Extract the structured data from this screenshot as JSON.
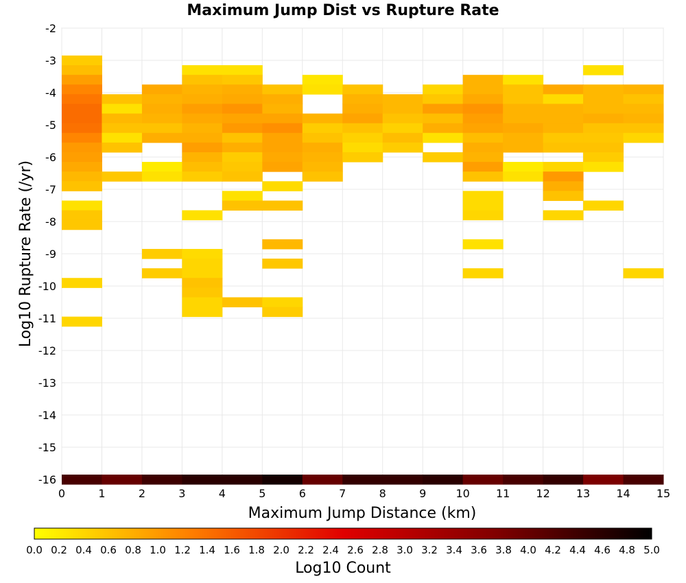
{
  "chart_data": {
    "type": "heatmap",
    "title": "Maximum Jump Dist vs Rupture Rate",
    "xlabel": "Maximum Jump Distance (km)",
    "ylabel": "Log10 Rupture Rate (/yr)",
    "xlim": [
      0,
      15
    ],
    "ylim": [
      -16,
      -2
    ],
    "x_ticks": [
      "0",
      "1",
      "2",
      "3",
      "4",
      "5",
      "6",
      "7",
      "8",
      "9",
      "10",
      "11",
      "12",
      "13",
      "14",
      "15"
    ],
    "y_ticks": [
      "-2",
      "-3",
      "-4",
      "-5",
      "-6",
      "-7",
      "-8",
      "-9",
      "-10",
      "-11",
      "-12",
      "-13",
      "-14",
      "-15",
      "-16"
    ],
    "grid": true,
    "bin_width_x": 1,
    "bin_height_y": 0.3,
    "colorbar": {
      "label": "Log10 Count",
      "min": 0.0,
      "max": 5.0,
      "ticks": [
        "0.0",
        "0.2",
        "0.4",
        "0.6",
        "0.8",
        "1.0",
        "1.2",
        "1.4",
        "1.6",
        "1.8",
        "2.0",
        "2.2",
        "2.4",
        "2.6",
        "2.8",
        "3.0",
        "3.2",
        "3.4",
        "3.6",
        "3.8",
        "4.0",
        "4.2",
        "4.4",
        "4.6",
        "4.8",
        "5.0"
      ],
      "colors": [
        "#ffff00",
        "#ff8000",
        "#e00000",
        "#800000",
        "#000000"
      ]
    },
    "cells": [
      {
        "x": 0,
        "y": -3.0,
        "v": 0.5
      },
      {
        "x": 0,
        "y": -3.3,
        "v": 0.65
      },
      {
        "x": 0,
        "y": -3.6,
        "v": 0.95
      },
      {
        "x": 0,
        "y": -3.9,
        "v": 1.2
      },
      {
        "x": 0,
        "y": -4.2,
        "v": 1.35
      },
      {
        "x": 0,
        "y": -4.5,
        "v": 1.45
      },
      {
        "x": 0,
        "y": -4.8,
        "v": 1.45
      },
      {
        "x": 0,
        "y": -5.1,
        "v": 1.4
      },
      {
        "x": 0,
        "y": -5.4,
        "v": 1.2
      },
      {
        "x": 0,
        "y": -5.7,
        "v": 1.0
      },
      {
        "x": 0,
        "y": -6.0,
        "v": 0.95
      },
      {
        "x": 0,
        "y": -6.3,
        "v": 0.85
      },
      {
        "x": 0,
        "y": -6.6,
        "v": 0.7
      },
      {
        "x": 0,
        "y": -6.9,
        "v": 0.6
      },
      {
        "x": 0,
        "y": -7.5,
        "v": 0.3
      },
      {
        "x": 0,
        "y": -7.8,
        "v": 0.55
      },
      {
        "x": 0,
        "y": -8.1,
        "v": 0.55
      },
      {
        "x": 0,
        "y": -9.9,
        "v": 0.4
      },
      {
        "x": 0,
        "y": -11.1,
        "v": 0.4
      },
      {
        "x": 1,
        "y": -4.2,
        "v": 0.6
      },
      {
        "x": 1,
        "y": -4.5,
        "v": 0.3
      },
      {
        "x": 1,
        "y": -4.8,
        "v": 0.7
      },
      {
        "x": 1,
        "y": -5.1,
        "v": 0.6
      },
      {
        "x": 1,
        "y": -5.4,
        "v": 0.3
      },
      {
        "x": 1,
        "y": -5.7,
        "v": 0.6
      },
      {
        "x": 1,
        "y": -6.6,
        "v": 0.55
      },
      {
        "x": 2,
        "y": -3.9,
        "v": 0.85
      },
      {
        "x": 2,
        "y": -4.2,
        "v": 0.75
      },
      {
        "x": 2,
        "y": -4.5,
        "v": 0.8
      },
      {
        "x": 2,
        "y": -4.8,
        "v": 0.75
      },
      {
        "x": 2,
        "y": -5.1,
        "v": 0.6
      },
      {
        "x": 2,
        "y": -5.4,
        "v": 0.8
      },
      {
        "x": 2,
        "y": -6.3,
        "v": 0.2
      },
      {
        "x": 2,
        "y": -6.6,
        "v": 0.3
      },
      {
        "x": 2,
        "y": -9.0,
        "v": 0.5
      },
      {
        "x": 2,
        "y": -9.6,
        "v": 0.5
      },
      {
        "x": 3,
        "y": -3.3,
        "v": 0.3
      },
      {
        "x": 3,
        "y": -3.6,
        "v": 0.6
      },
      {
        "x": 3,
        "y": -3.9,
        "v": 0.75
      },
      {
        "x": 3,
        "y": -4.2,
        "v": 0.8
      },
      {
        "x": 3,
        "y": -4.5,
        "v": 0.95
      },
      {
        "x": 3,
        "y": -4.8,
        "v": 0.85
      },
      {
        "x": 3,
        "y": -5.1,
        "v": 0.75
      },
      {
        "x": 3,
        "y": -5.4,
        "v": 0.8
      },
      {
        "x": 3,
        "y": -5.7,
        "v": 0.95
      },
      {
        "x": 3,
        "y": -6.0,
        "v": 0.75
      },
      {
        "x": 3,
        "y": -6.3,
        "v": 0.65
      },
      {
        "x": 3,
        "y": -6.6,
        "v": 0.5
      },
      {
        "x": 3,
        "y": -7.8,
        "v": 0.3
      },
      {
        "x": 3,
        "y": -9.0,
        "v": 0.35
      },
      {
        "x": 3,
        "y": -9.3,
        "v": 0.4
      },
      {
        "x": 3,
        "y": -9.6,
        "v": 0.4
      },
      {
        "x": 3,
        "y": -9.9,
        "v": 0.6
      },
      {
        "x": 3,
        "y": -10.2,
        "v": 0.55
      },
      {
        "x": 3,
        "y": -10.5,
        "v": 0.4
      },
      {
        "x": 3,
        "y": -10.8,
        "v": 0.4
      },
      {
        "x": 4,
        "y": -3.3,
        "v": 0.3
      },
      {
        "x": 4,
        "y": -3.6,
        "v": 0.55
      },
      {
        "x": 4,
        "y": -3.9,
        "v": 0.8
      },
      {
        "x": 4,
        "y": -4.2,
        "v": 0.85
      },
      {
        "x": 4,
        "y": -4.5,
        "v": 1.05
      },
      {
        "x": 4,
        "y": -4.8,
        "v": 0.9
      },
      {
        "x": 4,
        "y": -5.1,
        "v": 1.0
      },
      {
        "x": 4,
        "y": -5.4,
        "v": 0.6
      },
      {
        "x": 4,
        "y": -5.7,
        "v": 0.8
      },
      {
        "x": 4,
        "y": -6.0,
        "v": 0.5
      },
      {
        "x": 4,
        "y": -6.3,
        "v": 0.55
      },
      {
        "x": 4,
        "y": -6.6,
        "v": 0.6
      },
      {
        "x": 4,
        "y": -7.2,
        "v": 0.3
      },
      {
        "x": 4,
        "y": -7.5,
        "v": 0.6
      },
      {
        "x": 4,
        "y": -10.5,
        "v": 0.6
      },
      {
        "x": 5,
        "y": -3.9,
        "v": 0.6
      },
      {
        "x": 5,
        "y": -4.2,
        "v": 0.8
      },
      {
        "x": 5,
        "y": -4.5,
        "v": 0.75
      },
      {
        "x": 5,
        "y": -4.8,
        "v": 0.9
      },
      {
        "x": 5,
        "y": -5.1,
        "v": 1.1
      },
      {
        "x": 5,
        "y": -5.4,
        "v": 0.9
      },
      {
        "x": 5,
        "y": -5.7,
        "v": 0.9
      },
      {
        "x": 5,
        "y": -6.0,
        "v": 0.85
      },
      {
        "x": 5,
        "y": -6.3,
        "v": 0.9
      },
      {
        "x": 5,
        "y": -6.9,
        "v": 0.35
      },
      {
        "x": 5,
        "y": -7.5,
        "v": 0.6
      },
      {
        "x": 5,
        "y": -8.7,
        "v": 0.7
      },
      {
        "x": 5,
        "y": -9.3,
        "v": 0.55
      },
      {
        "x": 5,
        "y": -10.5,
        "v": 0.4
      },
      {
        "x": 5,
        "y": -10.8,
        "v": 0.5
      },
      {
        "x": 6,
        "y": -3.6,
        "v": 0.25
      },
      {
        "x": 6,
        "y": -3.9,
        "v": 0.3
      },
      {
        "x": 6,
        "y": -4.8,
        "v": 0.75
      },
      {
        "x": 6,
        "y": -5.1,
        "v": 0.5
      },
      {
        "x": 6,
        "y": -5.4,
        "v": 0.6
      },
      {
        "x": 6,
        "y": -5.7,
        "v": 0.8
      },
      {
        "x": 6,
        "y": -6.0,
        "v": 0.75
      },
      {
        "x": 6,
        "y": -6.3,
        "v": 0.7
      },
      {
        "x": 6,
        "y": -6.6,
        "v": 0.6
      },
      {
        "x": 7,
        "y": -3.9,
        "v": 0.6
      },
      {
        "x": 7,
        "y": -4.2,
        "v": 0.75
      },
      {
        "x": 7,
        "y": -4.5,
        "v": 0.8
      },
      {
        "x": 7,
        "y": -4.8,
        "v": 0.9
      },
      {
        "x": 7,
        "y": -5.1,
        "v": 0.6
      },
      {
        "x": 7,
        "y": -5.4,
        "v": 0.45
      },
      {
        "x": 7,
        "y": -5.7,
        "v": 0.35
      },
      {
        "x": 7,
        "y": -6.0,
        "v": 0.5
      },
      {
        "x": 8,
        "y": -4.2,
        "v": 0.7
      },
      {
        "x": 8,
        "y": -4.5,
        "v": 0.7
      },
      {
        "x": 8,
        "y": -4.8,
        "v": 0.6
      },
      {
        "x": 8,
        "y": -5.1,
        "v": 0.45
      },
      {
        "x": 8,
        "y": -5.4,
        "v": 0.65
      },
      {
        "x": 8,
        "y": -5.7,
        "v": 0.5
      },
      {
        "x": 9,
        "y": -3.9,
        "v": 0.4
      },
      {
        "x": 9,
        "y": -4.2,
        "v": 0.55
      },
      {
        "x": 9,
        "y": -4.5,
        "v": 0.95
      },
      {
        "x": 9,
        "y": -4.8,
        "v": 0.65
      },
      {
        "x": 9,
        "y": -5.1,
        "v": 0.8
      },
      {
        "x": 9,
        "y": -5.4,
        "v": 0.3
      },
      {
        "x": 9,
        "y": -6.0,
        "v": 0.5
      },
      {
        "x": 10,
        "y": -3.6,
        "v": 0.75
      },
      {
        "x": 10,
        "y": -3.9,
        "v": 0.75
      },
      {
        "x": 10,
        "y": -4.2,
        "v": 0.85
      },
      {
        "x": 10,
        "y": -4.5,
        "v": 1.05
      },
      {
        "x": 10,
        "y": -4.8,
        "v": 0.95
      },
      {
        "x": 10,
        "y": -5.1,
        "v": 0.9
      },
      {
        "x": 10,
        "y": -5.4,
        "v": 0.65
      },
      {
        "x": 10,
        "y": -5.7,
        "v": 0.8
      },
      {
        "x": 10,
        "y": -6.0,
        "v": 0.75
      },
      {
        "x": 10,
        "y": -6.3,
        "v": 0.95
      },
      {
        "x": 10,
        "y": -6.6,
        "v": 0.6
      },
      {
        "x": 10,
        "y": -7.2,
        "v": 0.35
      },
      {
        "x": 10,
        "y": -7.5,
        "v": 0.35
      },
      {
        "x": 10,
        "y": -7.8,
        "v": 0.4
      },
      {
        "x": 10,
        "y": -8.7,
        "v": 0.3
      },
      {
        "x": 10,
        "y": -9.6,
        "v": 0.4
      },
      {
        "x": 11,
        "y": -3.6,
        "v": 0.3
      },
      {
        "x": 11,
        "y": -3.9,
        "v": 0.6
      },
      {
        "x": 11,
        "y": -4.2,
        "v": 0.6
      },
      {
        "x": 11,
        "y": -4.5,
        "v": 0.75
      },
      {
        "x": 11,
        "y": -4.8,
        "v": 0.75
      },
      {
        "x": 11,
        "y": -5.1,
        "v": 0.85
      },
      {
        "x": 11,
        "y": -5.4,
        "v": 0.75
      },
      {
        "x": 11,
        "y": -5.7,
        "v": 0.75
      },
      {
        "x": 11,
        "y": -6.3,
        "v": 0.2
      },
      {
        "x": 11,
        "y": -6.6,
        "v": 0.3
      },
      {
        "x": 12,
        "y": -3.9,
        "v": 0.85
      },
      {
        "x": 12,
        "y": -4.2,
        "v": 0.35
      },
      {
        "x": 12,
        "y": -4.5,
        "v": 0.75
      },
      {
        "x": 12,
        "y": -4.8,
        "v": 0.75
      },
      {
        "x": 12,
        "y": -5.1,
        "v": 0.75
      },
      {
        "x": 12,
        "y": -5.4,
        "v": 0.55
      },
      {
        "x": 12,
        "y": -5.7,
        "v": 0.6
      },
      {
        "x": 12,
        "y": -6.3,
        "v": 0.4
      },
      {
        "x": 12,
        "y": -6.6,
        "v": 1.0
      },
      {
        "x": 12,
        "y": -6.9,
        "v": 0.8
      },
      {
        "x": 12,
        "y": -7.2,
        "v": 0.6
      },
      {
        "x": 12,
        "y": -7.8,
        "v": 0.4
      },
      {
        "x": 13,
        "y": -3.3,
        "v": 0.3
      },
      {
        "x": 13,
        "y": -3.9,
        "v": 0.7
      },
      {
        "x": 13,
        "y": -4.2,
        "v": 0.7
      },
      {
        "x": 13,
        "y": -4.5,
        "v": 0.7
      },
      {
        "x": 13,
        "y": -4.8,
        "v": 0.8
      },
      {
        "x": 13,
        "y": -5.1,
        "v": 0.6
      },
      {
        "x": 13,
        "y": -5.4,
        "v": 0.55
      },
      {
        "x": 13,
        "y": -5.7,
        "v": 0.6
      },
      {
        "x": 13,
        "y": -6.0,
        "v": 0.5
      },
      {
        "x": 13,
        "y": -6.3,
        "v": 0.3
      },
      {
        "x": 13,
        "y": -7.5,
        "v": 0.4
      },
      {
        "x": 14,
        "y": -3.9,
        "v": 0.75
      },
      {
        "x": 14,
        "y": -4.2,
        "v": 0.6
      },
      {
        "x": 14,
        "y": -4.5,
        "v": 0.7
      },
      {
        "x": 14,
        "y": -4.8,
        "v": 0.75
      },
      {
        "x": 14,
        "y": -5.1,
        "v": 0.6
      },
      {
        "x": 14,
        "y": -5.4,
        "v": 0.4
      },
      {
        "x": 14,
        "y": -9.6,
        "v": 0.4
      },
      {
        "x": 0,
        "y": -16,
        "v": 4.3
      },
      {
        "x": 1,
        "y": -16,
        "v": 4.0
      },
      {
        "x": 2,
        "y": -16,
        "v": 4.4
      },
      {
        "x": 3,
        "y": -16,
        "v": 4.6
      },
      {
        "x": 4,
        "y": -16,
        "v": 4.6
      },
      {
        "x": 5,
        "y": -16,
        "v": 4.8
      },
      {
        "x": 6,
        "y": -16,
        "v": 4.0
      },
      {
        "x": 7,
        "y": -16,
        "v": 4.5
      },
      {
        "x": 8,
        "y": -16,
        "v": 4.5
      },
      {
        "x": 9,
        "y": -16,
        "v": 4.6
      },
      {
        "x": 10,
        "y": -16,
        "v": 4.0
      },
      {
        "x": 11,
        "y": -16,
        "v": 4.3
      },
      {
        "x": 12,
        "y": -16,
        "v": 4.5
      },
      {
        "x": 13,
        "y": -16,
        "v": 3.8
      },
      {
        "x": 14,
        "y": -16,
        "v": 4.3
      }
    ]
  }
}
